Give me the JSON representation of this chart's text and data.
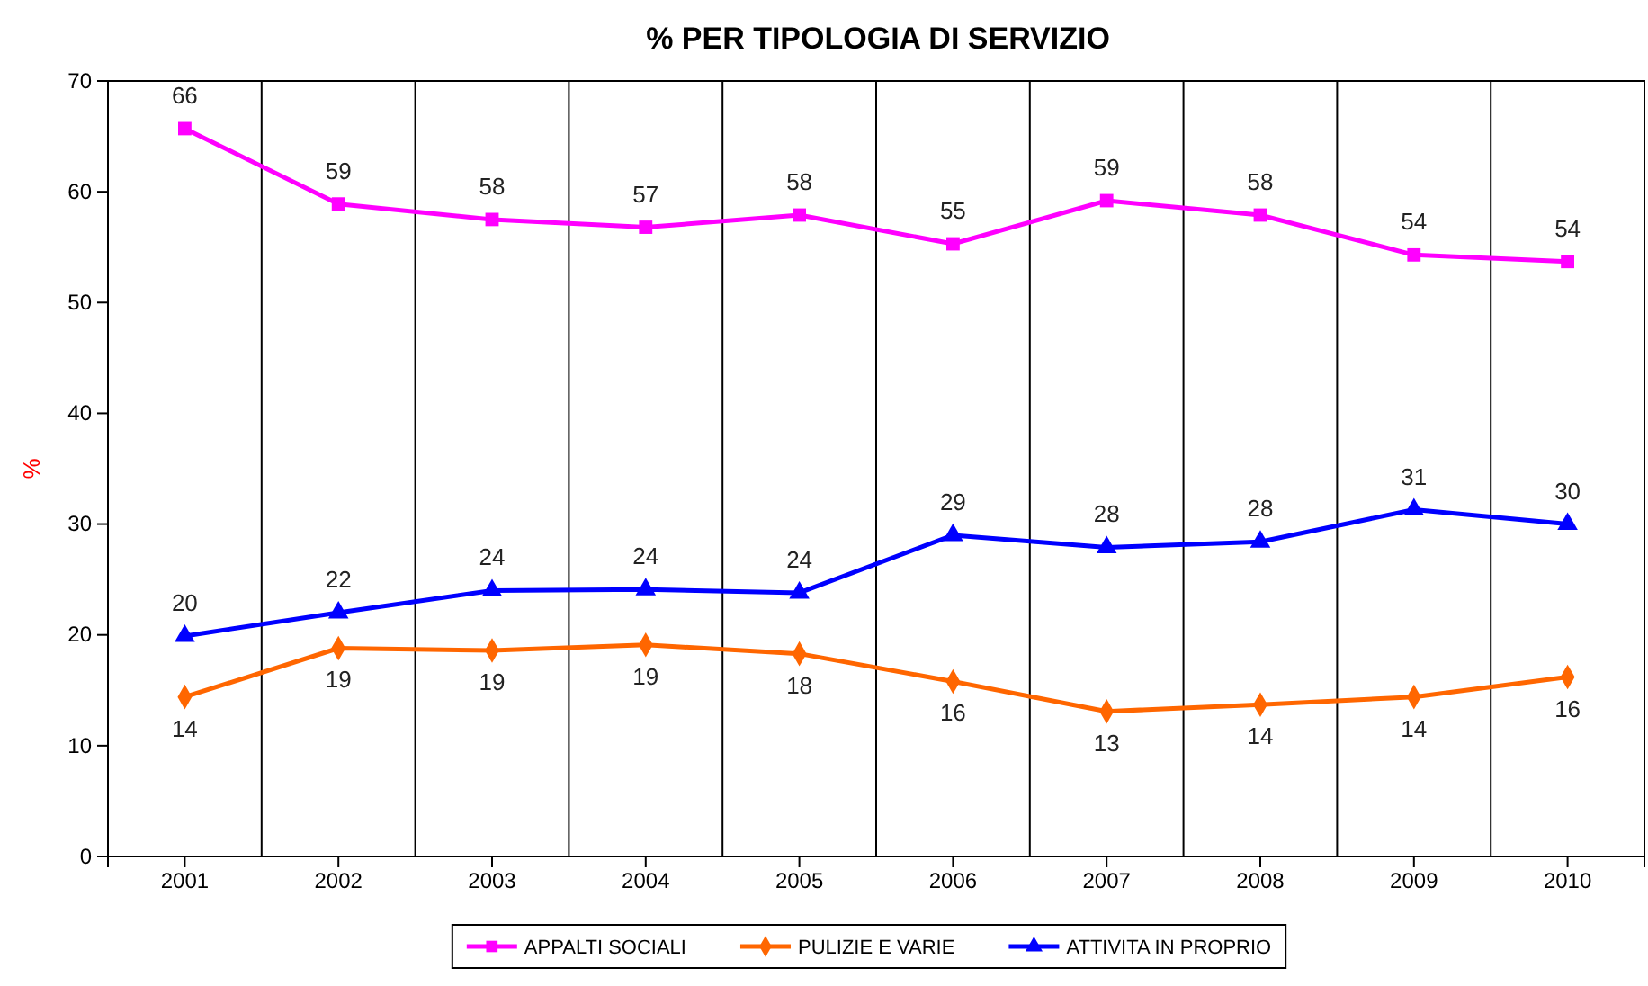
{
  "chart_data": {
    "type": "line",
    "title": "% PER TIPOLOGIA DI SERVIZIO",
    "ylabel": "%",
    "categories": [
      "2001",
      "2002",
      "2003",
      "2004",
      "2005",
      "2006",
      "2007",
      "2008",
      "2009",
      "2010"
    ],
    "series": [
      {
        "name": "APPALTI SOCIALI",
        "color": "#ff00ff",
        "marker": "square",
        "values": [
          65.7,
          58.9,
          57.5,
          56.8,
          57.9,
          55.3,
          59.2,
          57.9,
          54.3,
          53.7
        ],
        "value_labels": [
          "66",
          "59",
          "58",
          "57",
          "58",
          "55",
          "59",
          "58",
          "54",
          "54"
        ]
      },
      {
        "name": "PULIZIE E VARIE",
        "color": "#ff6600",
        "marker": "diamond",
        "values": [
          14.4,
          18.8,
          18.6,
          19.1,
          18.3,
          15.8,
          13.1,
          13.7,
          14.4,
          16.2
        ],
        "value_labels": [
          "14",
          "19",
          "19",
          "19",
          "18",
          "16",
          "13",
          "14",
          "14",
          "16"
        ]
      },
      {
        "name": "ATTIVITA IN PROPRIO",
        "color": "#0000ff",
        "marker": "triangle",
        "values": [
          19.9,
          22.0,
          24.0,
          24.1,
          23.8,
          29.0,
          27.9,
          28.4,
          31.3,
          30.0
        ],
        "value_labels": [
          "20",
          "22",
          "24",
          "24",
          "24",
          "29",
          "28",
          "28",
          "31",
          "30"
        ]
      }
    ],
    "ylim": [
      0,
      70
    ],
    "yticks": [
      0,
      10,
      20,
      30,
      40,
      50,
      60,
      70
    ],
    "grid": "x",
    "legend": "bottom"
  }
}
